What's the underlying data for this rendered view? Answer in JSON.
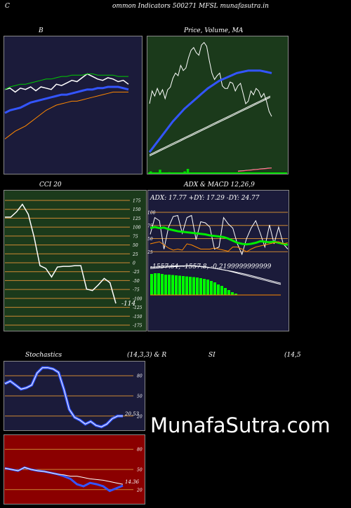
{
  "header": {
    "left_letter": "C",
    "title": "ommon  Indicators 500271 MFSL  munafasutra.in"
  },
  "watermark": "MunafaSutra.com",
  "colors": {
    "navy": "#1b1b3a",
    "green": "#1b3a1b",
    "red": "#8b0000",
    "grid": "#cc8833"
  },
  "chart_data": [
    {
      "id": "bollinger",
      "type": "line",
      "title": "B",
      "ylim": [
        0,
        100
      ],
      "series": [
        {
          "color": "#ffffff",
          "values": [
            62,
            63,
            60,
            63,
            62,
            64,
            61,
            64,
            63,
            62,
            66,
            65,
            67,
            69,
            68,
            71,
            74,
            72,
            70,
            69,
            71,
            70,
            68,
            69,
            66
          ]
        },
        {
          "color": "#3355ff",
          "values": [
            44,
            46,
            47,
            48,
            50,
            52,
            53,
            54,
            55,
            56,
            57,
            58,
            58,
            59,
            60,
            61,
            62,
            62,
            63,
            63,
            64,
            64,
            64,
            63,
            62
          ]
        },
        {
          "color": "#00cc00",
          "values": [
            62,
            64,
            65,
            66,
            66,
            67,
            68,
            69,
            70,
            70,
            71,
            72,
            72,
            73,
            73,
            73,
            74,
            74,
            73,
            73,
            73,
            73,
            72,
            72,
            72
          ]
        },
        {
          "color": "#ff8800",
          "values": [
            24,
            27,
            30,
            32,
            34,
            37,
            40,
            43,
            46,
            48,
            50,
            51,
            52,
            53,
            53,
            54,
            55,
            56,
            57,
            58,
            59,
            60,
            60,
            60,
            60
          ]
        }
      ]
    },
    {
      "id": "price-ma",
      "type": "line",
      "title": "Price,  Volume,  MA",
      "ylim": [
        0,
        100
      ],
      "series": [
        {
          "color": "#ffffff",
          "values": [
            50,
            60,
            56,
            62,
            57,
            61,
            54,
            61,
            63,
            70,
            74,
            72,
            80,
            76,
            78,
            86,
            92,
            94,
            90,
            88,
            96,
            98,
            95,
            84,
            74,
            69,
            72,
            74,
            64,
            62,
            62,
            67,
            66,
            60,
            64,
            66,
            58,
            50,
            52,
            60,
            57,
            62,
            60,
            55,
            58,
            52,
            44,
            40
          ]
        },
        {
          "color": "#ffffff",
          "values": [
            10,
            12,
            14,
            16,
            18,
            20,
            22,
            24,
            26,
            28,
            30,
            32,
            34,
            36,
            38,
            40,
            42,
            44,
            46,
            48,
            50,
            52,
            54,
            56
          ]
        },
        {
          "color": "#ffffff",
          "values": [
            9,
            11,
            13,
            15,
            17,
            19,
            21,
            23,
            25,
            27,
            29,
            31,
            33,
            35,
            37,
            39,
            41,
            43,
            45,
            47,
            49,
            51,
            53,
            55
          ]
        },
        {
          "color": "#3355ff",
          "values": [
            12,
            18,
            24,
            30,
            36,
            41,
            46,
            50,
            54,
            58,
            62,
            65,
            68,
            70,
            72,
            74,
            75,
            76,
            76,
            76,
            75,
            74
          ]
        },
        {
          "color": "#ffffff",
          "values": [
            2,
            4,
            6,
            8,
            10,
            12,
            14,
            16
          ]
        },
        {
          "color": "#ff4466",
          "values": [
            1,
            3,
            5,
            7,
            9,
            11,
            13,
            15
          ]
        }
      ],
      "volume": [
        2,
        0,
        0,
        4,
        0,
        0,
        1,
        0,
        0,
        0,
        0,
        2,
        5,
        0,
        0,
        0,
        0,
        0,
        0,
        0,
        0,
        0,
        0,
        0,
        0,
        0,
        0,
        0,
        0,
        0,
        0,
        0,
        0,
        0,
        0,
        0,
        0,
        0,
        0,
        0
      ]
    },
    {
      "id": "cci",
      "type": "line",
      "title": "CCI 20",
      "ylim": [
        -175,
        175
      ],
      "ticks": [
        175,
        150,
        125,
        100,
        75,
        50,
        25,
        0,
        -25,
        -50,
        -75,
        -100,
        -125,
        -150,
        -175
      ],
      "tick_labels": [
        "175",
        "150",
        "125",
        "100",
        "75",
        "50",
        "25",
        "0",
        "-25",
        "-50",
        "-75",
        "-100",
        "-125",
        "-150",
        "-175"
      ],
      "last_label": "-114",
      "series": [
        {
          "color": "#ffffff",
          "values": [
            128,
            128,
            143,
            164,
            136,
            72,
            -8,
            -16,
            -40,
            -12,
            -10,
            -10,
            -8,
            -8,
            -74,
            -78,
            -62,
            -44,
            -56,
            -114
          ]
        }
      ]
    },
    {
      "id": "adx",
      "type": "line",
      "title": "ADX  & MACD 12,26,9",
      "subtitle": "ADX: 17.77  +DY: 17.29  -DY: 24.77",
      "ylim": [
        0,
        100
      ],
      "ticks": [
        100,
        75,
        50,
        25
      ],
      "tick_labels": [
        "100",
        "75",
        "50",
        "25"
      ],
      "series": [
        {
          "color": "#ffffff",
          "values": [
            58,
            90,
            84,
            30,
            72,
            92,
            94,
            60,
            90,
            94,
            48,
            82,
            80,
            72,
            30,
            34,
            90,
            78,
            70,
            40,
            20,
            50,
            70,
            84,
            60,
            34,
            76,
            40,
            72,
            40,
            30
          ]
        },
        {
          "color": "#00ee00",
          "values": [
            70,
            72,
            70,
            71,
            68,
            66,
            64,
            63,
            62,
            61,
            60,
            59,
            58,
            56,
            55,
            54,
            53,
            50,
            46,
            42,
            40,
            39,
            40,
            42,
            45,
            44,
            43,
            44,
            42,
            40,
            38
          ]
        },
        {
          "color": "#ff8800",
          "values": [
            40,
            42,
            44,
            38,
            32,
            28,
            30,
            28,
            40,
            38,
            34,
            30,
            30,
            30,
            32,
            30,
            28,
            26,
            34,
            34,
            30,
            25,
            30,
            34,
            36,
            38,
            40,
            42,
            44,
            40,
            42
          ]
        }
      ],
      "macd_label": "-1557.64,  -1557.8, -0.2199999999999",
      "macd_series": [
        {
          "color": "#ffffff",
          "values": [
            94,
            96,
            98,
            98,
            99,
            99,
            100,
            98,
            96,
            92,
            88,
            84,
            78,
            72,
            66,
            60,
            54,
            48,
            42,
            36
          ]
        },
        {
          "color": "#ffffff",
          "values": [
            90,
            92,
            94,
            96,
            97,
            98,
            98,
            97,
            95,
            92,
            88,
            84,
            80,
            75,
            70,
            64,
            58,
            52,
            46,
            40
          ]
        }
      ],
      "macd_hist": [
        60,
        62,
        62,
        60,
        58,
        58,
        57,
        56,
        55,
        54,
        53,
        52,
        51,
        50,
        48,
        46,
        44,
        40,
        36,
        30,
        26,
        20,
        14,
        8,
        4
      ]
    },
    {
      "id": "stochastics",
      "type": "line",
      "title": "Stochastics",
      "params": "(14,3,3) & R",
      "ylim": [
        0,
        100
      ],
      "ticks": [
        80,
        50,
        20
      ],
      "tick_labels": [
        "80",
        "50",
        "20"
      ],
      "last_label": "20.53",
      "series": [
        {
          "color": "#3355ff",
          "values": [
            68,
            72,
            66,
            60,
            62,
            66,
            84,
            92,
            92,
            90,
            85,
            60,
            30,
            18,
            14,
            8,
            12,
            6,
            4,
            8,
            16,
            20,
            20
          ]
        },
        {
          "color": "#ffffff",
          "values": [
            68,
            72,
            66,
            60,
            62,
            66,
            84,
            92,
            92,
            90,
            85,
            60,
            30,
            18,
            14,
            8,
            12,
            6,
            4,
            8,
            16,
            20,
            20
          ]
        }
      ]
    },
    {
      "id": "rsi",
      "type": "line",
      "title": "SI",
      "params": "(14,5",
      "ylim": [
        0,
        100
      ],
      "ticks": [
        80,
        50,
        20
      ],
      "tick_labels": [
        "80",
        "50",
        "20"
      ],
      "last_label": "14.36",
      "series": [
        {
          "color": "#3355ff",
          "values": [
            52,
            50,
            48,
            53,
            50,
            48,
            47,
            45,
            43,
            40,
            36,
            28,
            25,
            30,
            28,
            25,
            18,
            22,
            26
          ]
        },
        {
          "color": "#ffffff",
          "values": [
            52,
            50,
            48,
            53,
            50,
            48,
            47,
            45,
            43,
            42,
            40,
            40,
            38,
            36,
            35,
            34,
            32,
            30,
            28
          ]
        }
      ]
    }
  ]
}
